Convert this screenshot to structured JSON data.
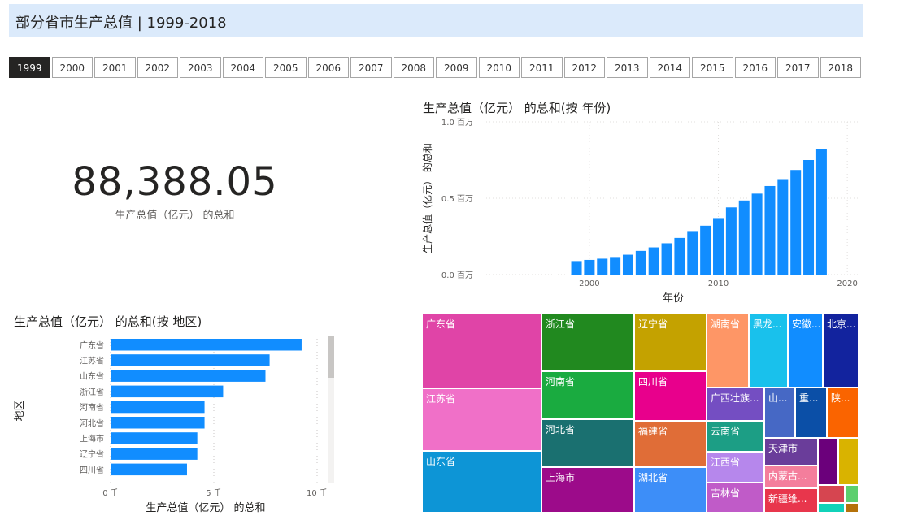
{
  "header": {
    "title": "部分省市生产总值 | 1999-2018"
  },
  "slicer": {
    "years": [
      "1999",
      "2000",
      "2001",
      "2002",
      "2003",
      "2004",
      "2005",
      "2006",
      "2007",
      "2008",
      "2009",
      "2010",
      "2011",
      "2012",
      "2013",
      "2014",
      "2015",
      "2016",
      "2017",
      "2018"
    ],
    "selected": "1999"
  },
  "kpi": {
    "value": "88,388.05",
    "label": "生产总值（亿元） 的总和"
  },
  "colors": {
    "bar": "#118dff",
    "selected_bg": "#252423",
    "title_bg": "#dbeafb"
  },
  "chart_data": [
    {
      "type": "bar",
      "title": "生产总值（亿元） 的总和(按 年份)",
      "xlabel": "年份",
      "ylabel": "生产总值（亿元） 的总和",
      "x": [
        1999,
        2000,
        2001,
        2002,
        2003,
        2004,
        2005,
        2006,
        2007,
        2008,
        2009,
        2010,
        2011,
        2012,
        2013,
        2014,
        2015,
        2016,
        2017,
        2018
      ],
      "values": [
        88388,
        96000,
        104000,
        115000,
        130000,
        155000,
        178000,
        205000,
        240000,
        285000,
        320000,
        370000,
        440000,
        485000,
        530000,
        580000,
        625000,
        685000,
        750000,
        820000
      ],
      "xticks": [
        "2000",
        "2010",
        "2020"
      ],
      "yticks": [
        "0.0 百万",
        "0.5 百万",
        "1.0 百万"
      ],
      "xlim": [
        1992,
        2021
      ],
      "ylim": [
        0,
        1000000
      ]
    },
    {
      "type": "bar",
      "orientation": "horizontal",
      "title": "生产总值（亿元） 的总和(按 地区)",
      "xlabel": "生产总值（亿元） 的总和",
      "ylabel": "地区",
      "categories": [
        "广东省",
        "江苏省",
        "山东省",
        "浙江省",
        "河南省",
        "河北省",
        "上海市",
        "辽宁省",
        "四川省"
      ],
      "values": [
        9250,
        7700,
        7500,
        5450,
        4550,
        4550,
        4200,
        4200,
        3700
      ],
      "xticks": [
        "0 千",
        "5 千",
        "10 千"
      ],
      "xlim": [
        0,
        10000
      ]
    },
    {
      "type": "treemap",
      "title": "",
      "items": [
        {
          "label": "广东省",
          "color": "#e044a7"
        },
        {
          "label": "江苏省",
          "color": "#f070c8"
        },
        {
          "label": "山东省",
          "color": "#0d95d6"
        },
        {
          "label": "浙江省",
          "color": "#21891f"
        },
        {
          "label": "河南省",
          "color": "#1aab40"
        },
        {
          "label": "河北省",
          "color": "#1a7070"
        },
        {
          "label": "上海市",
          "color": "#9c0b8a"
        },
        {
          "label": "辽宁省",
          "color": "#c4a200"
        },
        {
          "label": "四川省",
          "color": "#e8008c"
        },
        {
          "label": "福建省",
          "color": "#e06d37"
        },
        {
          "label": "湖北省",
          "color": "#3d8ef8"
        },
        {
          "label": "湖南省",
          "color": "#fe9666"
        },
        {
          "label": "黑龙...",
          "color": "#19c1ec"
        },
        {
          "label": "安徽...",
          "color": "#118dff"
        },
        {
          "label": "北京...",
          "color": "#12239e"
        },
        {
          "label": "广西壮族...",
          "color": "#744ec2"
        },
        {
          "label": "山...",
          "color": "#4668c5"
        },
        {
          "label": "重...",
          "color": "#0b4fa7"
        },
        {
          "label": "陕...",
          "color": "#fa6400"
        },
        {
          "label": "云南省",
          "color": "#1c9e85"
        },
        {
          "label": "江西省",
          "color": "#b687ec"
        },
        {
          "label": "吉林省",
          "color": "#c05bc8"
        },
        {
          "label": "天津市",
          "color": "#6a3d9a"
        },
        {
          "label": "内蒙古...",
          "color": "#f47e9c"
        },
        {
          "label": "新疆维...",
          "color": "#e8364c"
        },
        {
          "label": "",
          "color": "#6b007b"
        },
        {
          "label": "",
          "color": "#d9b300"
        },
        {
          "label": "",
          "color": "#d64550"
        },
        {
          "label": "",
          "color": "#5ccf6e"
        },
        {
          "label": "",
          "color": "#11d2b9"
        },
        {
          "label": "",
          "color": "#b5720a"
        }
      ]
    }
  ]
}
